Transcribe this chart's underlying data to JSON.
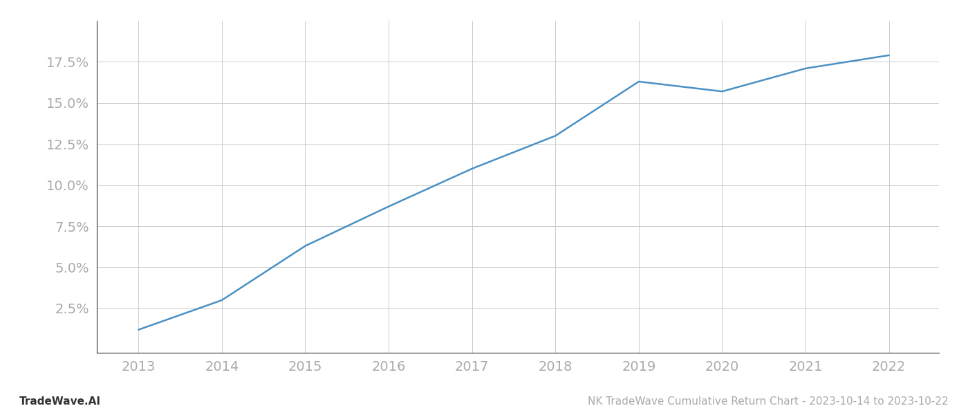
{
  "x_years": [
    2013,
    2014,
    2015,
    2016,
    2017,
    2018,
    2019,
    2020,
    2021,
    2022
  ],
  "y_values": [
    0.012,
    0.03,
    0.063,
    0.087,
    0.11,
    0.13,
    0.163,
    0.157,
    0.171,
    0.179
  ],
  "line_color": "#4a90c4",
  "line_width": 1.8,
  "background_color": "#ffffff",
  "grid_color": "#cccccc",
  "footer_left": "TradeWave.AI",
  "footer_right": "NK TradeWave Cumulative Return Chart - 2023-10-14 to 2023-10-22",
  "yticks": [
    0.025,
    0.05,
    0.075,
    0.1,
    0.125,
    0.15,
    0.175
  ],
  "ytick_labels": [
    "2.5%",
    "5.0%",
    "7.5%",
    "10.0%",
    "12.5%",
    "15.0%",
    "17.5%"
  ],
  "xlim": [
    2012.5,
    2022.6
  ],
  "ylim": [
    -0.002,
    0.2
  ],
  "xticks": [
    2013,
    2014,
    2015,
    2016,
    2017,
    2018,
    2019,
    2020,
    2021,
    2022
  ],
  "tick_label_color": "#aaaaaa",
  "axis_color": "#333333",
  "footer_font_size": 11,
  "tick_fontsize": 14
}
